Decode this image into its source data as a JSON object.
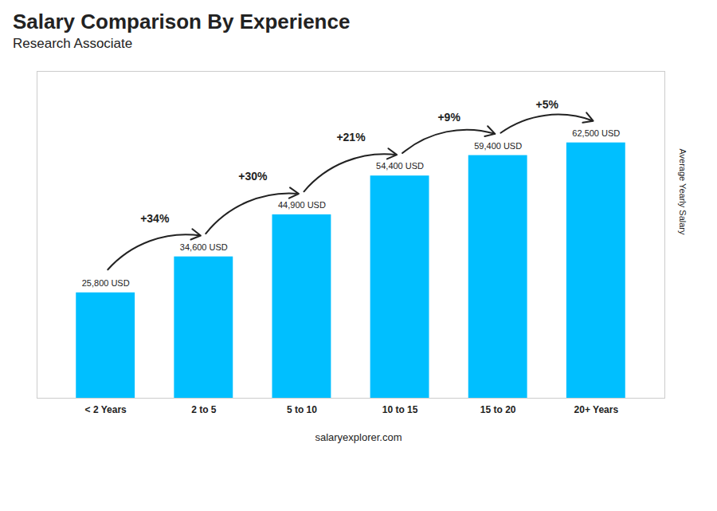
{
  "chart_data": {
    "type": "bar",
    "title": "Salary Comparison By Experience",
    "subtitle": "Research Associate",
    "categories": [
      "< 2 Years",
      "2 to 5",
      "5 to 10",
      "10 to 15",
      "15 to 20",
      "20+ Years"
    ],
    "values": [
      25800,
      34600,
      44900,
      54400,
      59400,
      62500
    ],
    "value_labels": [
      "25,800 USD",
      "34,600 USD",
      "44,900 USD",
      "54,400 USD",
      "59,400 USD",
      "62,500 USD"
    ],
    "data_labels": true,
    "annotations": [
      "+34%",
      "+30%",
      "+21%",
      "+9%",
      "+5%"
    ],
    "ylabel": "Average Yearly Salary",
    "caption": "salaryexplorer.com",
    "color": "#00BFFF",
    "ylim": [
      0,
      80000
    ],
    "tick_labels": "x"
  }
}
